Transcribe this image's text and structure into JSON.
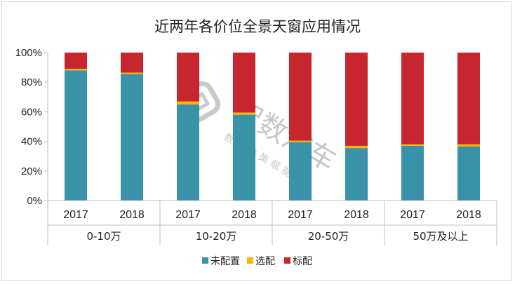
{
  "colors": {
    "none": "#3a92a8",
    "optional": "#f5b800",
    "standard": "#c8262f",
    "axis": "#bfbfbf"
  },
  "watermark": {
    "brand": "智数汽车",
    "slogan": "数据决策赋能者",
    "tm": "TM"
  },
  "chart_data": {
    "type": "bar",
    "stacked": true,
    "title": "近两年各价位全景天窗应用情况",
    "ylim": [
      0,
      100
    ],
    "yticks": [
      "0%",
      "20%",
      "40%",
      "60%",
      "80%",
      "100%"
    ],
    "grid": false,
    "legend_position": "bottom",
    "groups": [
      {
        "label": "0-10万",
        "years": [
          "2017",
          "2018"
        ]
      },
      {
        "label": "10-20万",
        "years": [
          "2017",
          "2018"
        ]
      },
      {
        "label": "20-50万",
        "years": [
          "2017",
          "2018"
        ]
      },
      {
        "label": "50万及以上",
        "years": [
          "2017",
          "2018"
        ]
      }
    ],
    "series": [
      {
        "name": "未配置",
        "color": "#3a92a8",
        "values": [
          88,
          85.5,
          65,
          58,
          39.5,
          35.5,
          37,
          36.5
        ]
      },
      {
        "name": "选配",
        "color": "#f5b800",
        "values": [
          1,
          1,
          2,
          1.5,
          1,
          1.5,
          1,
          1.5
        ]
      },
      {
        "name": "标配",
        "color": "#c8262f",
        "values": [
          11,
          13.5,
          33,
          40.5,
          59.5,
          63,
          62,
          62
        ]
      }
    ]
  }
}
